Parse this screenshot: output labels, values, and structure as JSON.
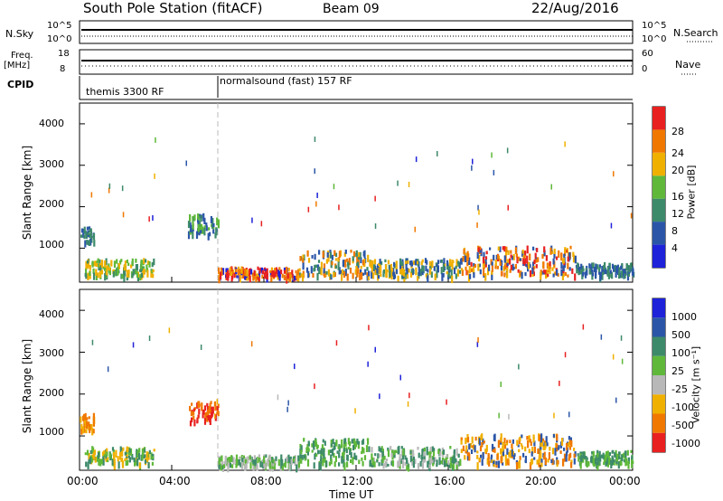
{
  "header": {
    "station": "South Pole Station (fitACF)",
    "beam": "Beam 09",
    "date": "22/Aug/2016"
  },
  "summary": {
    "nsky_label": "N.Sky",
    "nsky_ticks": [
      "10^5",
      "10^0"
    ],
    "nsearch_label": "N.Search",
    "freq_label": "Freq.",
    "freq_unit": "[MHz]",
    "freq_ticks": [
      "18",
      "8"
    ],
    "nave_label": "Nave",
    "nave_ticks": [
      "60",
      "0"
    ],
    "cpid_label": "CPID",
    "cpid_segments": [
      "themis 3300 RF",
      "normalsound (fast) 157 RF"
    ],
    "cpid_switch_time": "06:00"
  },
  "chart_data": [
    {
      "type": "heatmap",
      "title": "",
      "xlabel": "Time UT",
      "ylabel": "Slant Range [km]",
      "x_ticks": [
        "00:00",
        "04:00",
        "08:00",
        "12:00",
        "16:00",
        "20:00",
        "00:00"
      ],
      "y_ticks": [
        "1000",
        "2000",
        "3000",
        "4000"
      ],
      "xlim_hours": [
        0,
        24
      ],
      "ylim_km": [
        180,
        4500
      ],
      "colorbar_label": "Power [dB]",
      "colorbar_ticks": [
        "4",
        "8",
        "12",
        "16",
        "20",
        "24",
        "28"
      ],
      "colors": [
        "#1e22d8",
        "#2b56a8",
        "#3d8a6a",
        "#5fb83a",
        "#f0b000",
        "#f07800",
        "#e82020"
      ],
      "blobs": [
        {
          "t0": 0.0,
          "t1": 0.6,
          "r0": 1100,
          "r1": 1500,
          "c": [
            1,
            2
          ]
        },
        {
          "t0": 0.2,
          "t1": 3.2,
          "r0": 300,
          "r1": 700,
          "c": [
            2,
            3,
            4
          ]
        },
        {
          "t0": 4.7,
          "t1": 6.0,
          "r0": 1300,
          "r1": 1800,
          "c": [
            1,
            2,
            3
          ]
        },
        {
          "t0": 6.0,
          "t1": 9.5,
          "r0": 250,
          "r1": 500,
          "c": [
            0,
            4,
            5,
            6
          ]
        },
        {
          "t0": 9.5,
          "t1": 12.5,
          "r0": 300,
          "r1": 900,
          "c": [
            1,
            2,
            4,
            5
          ]
        },
        {
          "t0": 12.5,
          "t1": 16.5,
          "r0": 250,
          "r1": 700,
          "c": [
            1,
            2,
            4
          ]
        },
        {
          "t0": 16.5,
          "t1": 21.5,
          "r0": 300,
          "r1": 1000,
          "c": [
            1,
            4,
            5,
            6
          ]
        },
        {
          "t0": 21.5,
          "t1": 24.0,
          "r0": 300,
          "r1": 600,
          "c": [
            1,
            2
          ]
        }
      ]
    },
    {
      "type": "heatmap",
      "title": "",
      "xlabel": "Time UT",
      "ylabel": "Slant Range [km]",
      "x_ticks": [
        "00:00",
        "04:00",
        "08:00",
        "12:00",
        "16:00",
        "20:00",
        "00:00"
      ],
      "y_ticks": [
        "1000",
        "2000",
        "3000",
        "4000"
      ],
      "xlim_hours": [
        0,
        24
      ],
      "ylim_km": [
        180,
        4500
      ],
      "colorbar_label": "Velocity [m s⁻¹]",
      "colorbar_ticks": [
        "1000",
        "500",
        "100",
        "25",
        "-25",
        "-100",
        "-500",
        "-1000"
      ],
      "colors": [
        "#1e22d8",
        "#2b56a8",
        "#3d8a6a",
        "#5fb83a",
        "#b8b8b8",
        "#f0b000",
        "#f07800",
        "#e82020"
      ],
      "blobs": [
        {
          "t0": 0.0,
          "t1": 0.6,
          "r0": 1100,
          "r1": 1500,
          "c": [
            5,
            6
          ]
        },
        {
          "t0": 0.2,
          "t1": 3.2,
          "r0": 300,
          "r1": 700,
          "c": [
            2,
            3,
            5
          ]
        },
        {
          "t0": 4.7,
          "t1": 6.0,
          "r0": 1300,
          "r1": 1800,
          "c": [
            6,
            7
          ]
        },
        {
          "t0": 6.0,
          "t1": 9.5,
          "r0": 250,
          "r1": 500,
          "c": [
            3,
            4,
            2
          ]
        },
        {
          "t0": 9.5,
          "t1": 12.5,
          "r0": 300,
          "r1": 900,
          "c": [
            2,
            3
          ]
        },
        {
          "t0": 12.5,
          "t1": 16.5,
          "r0": 250,
          "r1": 700,
          "c": [
            2,
            3,
            4
          ]
        },
        {
          "t0": 16.5,
          "t1": 21.5,
          "r0": 300,
          "r1": 1000,
          "c": [
            1,
            5,
            6
          ]
        },
        {
          "t0": 21.5,
          "t1": 24.0,
          "r0": 300,
          "r1": 600,
          "c": [
            2,
            3
          ]
        }
      ]
    }
  ]
}
